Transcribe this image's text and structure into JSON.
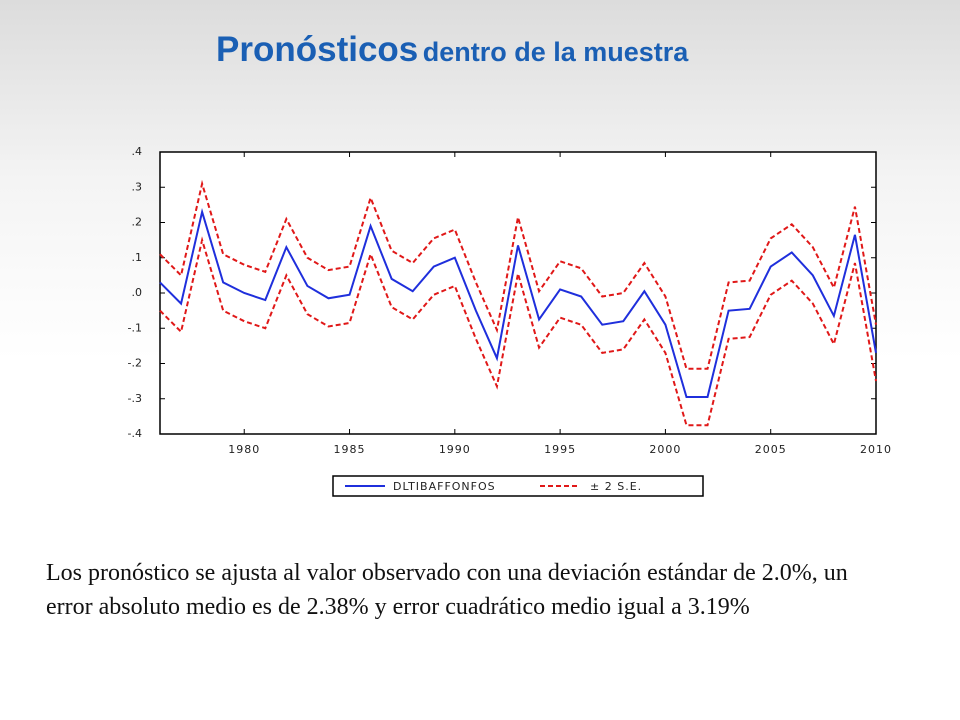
{
  "header": {
    "title_main": "Pronósticos",
    "title_rest": "dentro de la muestra"
  },
  "chart_data": {
    "type": "line",
    "x": [
      1976,
      1977,
      1978,
      1979,
      1980,
      1981,
      1982,
      1983,
      1984,
      1985,
      1986,
      1987,
      1988,
      1989,
      1990,
      1991,
      1992,
      1993,
      1994,
      1995,
      1996,
      1997,
      1998,
      1999,
      2000,
      2001,
      2002,
      2003,
      2004,
      2005,
      2006,
      2007,
      2008,
      2009,
      2010
    ],
    "series": [
      {
        "name": "DLTIBAFFONFOS",
        "color": "#1f2fdc",
        "values": [
          0.03,
          -0.03,
          0.23,
          0.03,
          0.0,
          -0.02,
          0.13,
          0.02,
          -0.015,
          -0.005,
          0.19,
          0.04,
          0.005,
          0.075,
          0.1,
          -0.05,
          -0.185,
          0.135,
          -0.075,
          0.01,
          -0.01,
          -0.09,
          -0.08,
          0.005,
          -0.09,
          -0.295,
          -0.295,
          -0.05,
          -0.045,
          0.075,
          0.115,
          0.05,
          -0.065,
          0.165,
          -0.17
        ]
      }
    ],
    "band": {
      "name": "± 2 S.E.",
      "color": "#e01818",
      "upper": [
        0.11,
        0.05,
        0.31,
        0.11,
        0.08,
        0.06,
        0.21,
        0.1,
        0.065,
        0.075,
        0.27,
        0.12,
        0.085,
        0.155,
        0.18,
        0.03,
        -0.105,
        0.215,
        0.005,
        0.09,
        0.07,
        -0.01,
        0.0,
        0.085,
        -0.01,
        -0.215,
        -0.215,
        0.03,
        0.035,
        0.155,
        0.195,
        0.13,
        0.015,
        0.245,
        -0.09
      ],
      "lower": [
        -0.05,
        -0.11,
        0.15,
        -0.05,
        -0.08,
        -0.1,
        0.05,
        -0.06,
        -0.095,
        -0.085,
        0.11,
        -0.04,
        -0.075,
        -0.005,
        0.02,
        -0.13,
        -0.265,
        0.055,
        -0.155,
        -0.07,
        -0.09,
        -0.17,
        -0.16,
        -0.075,
        -0.17,
        -0.375,
        -0.375,
        -0.13,
        -0.125,
        -0.005,
        0.035,
        -0.03,
        -0.145,
        0.085,
        -0.25
      ]
    },
    "xlim": [
      1976,
      2010
    ],
    "xticks": [
      1980,
      1985,
      1990,
      1995,
      2000,
      2005,
      2010
    ],
    "ylim": [
      -0.4,
      0.4
    ],
    "yticks": [
      {
        "value": 0.4,
        "label": ".4"
      },
      {
        "value": 0.3,
        "label": ".3"
      },
      {
        "value": 0.2,
        "label": ".2"
      },
      {
        "value": 0.1,
        "label": ".1"
      },
      {
        "value": 0.0,
        "label": ".0"
      },
      {
        "value": -0.1,
        "label": "-.1"
      },
      {
        "value": -0.2,
        "label": "-.2"
      },
      {
        "value": -0.3,
        "label": "-.3"
      },
      {
        "value": -0.4,
        "label": "-.4"
      }
    ]
  },
  "caption": "Los pronóstico se ajusta al valor observado con una deviación estándar de 2.0%, un error absoluto medio es de 2.38% y error cuadrático medio igual a 3.19%"
}
